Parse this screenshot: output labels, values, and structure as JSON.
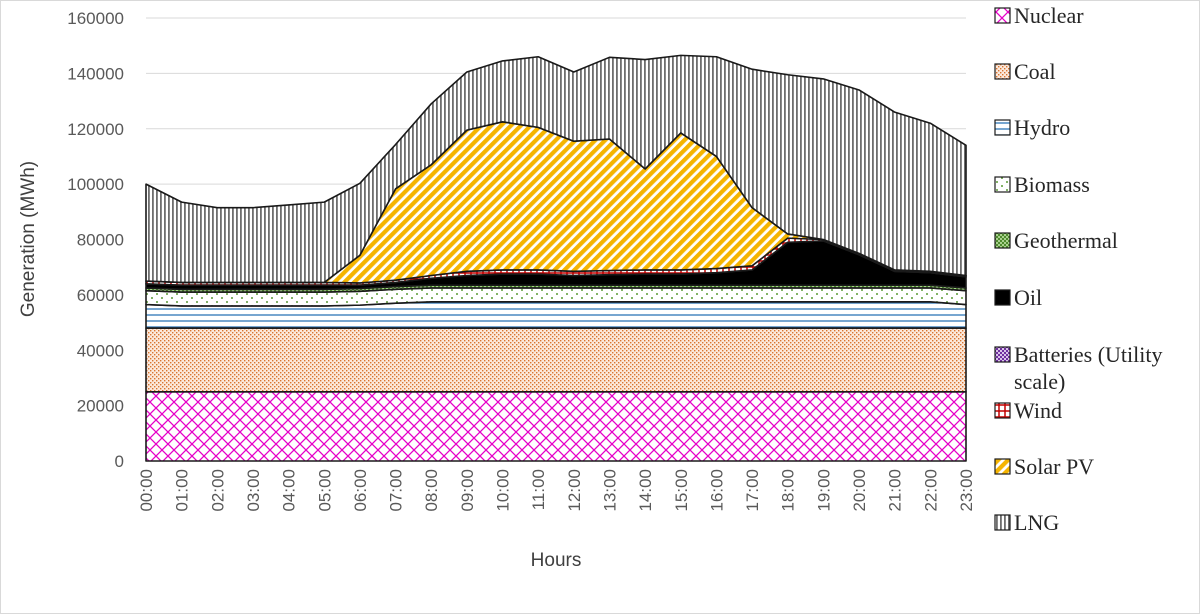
{
  "chart_data": {
    "type": "area",
    "stacked": true,
    "xlabel": "Hours",
    "ylabel": "Generation (MWh)",
    "ylim": [
      0,
      160000
    ],
    "yticks": [
      "0",
      "20000",
      "40000",
      "60000",
      "80000",
      "100000",
      "120000",
      "140000",
      "160000"
    ],
    "grid": "horizontal",
    "legend_position": "right",
    "x": [
      "00:00",
      "01:00",
      "02:00",
      "03:00",
      "04:00",
      "05:00",
      "06:00",
      "07:00",
      "08:00",
      "09:00",
      "10:00",
      "11:00",
      "12:00",
      "13:00",
      "14:00",
      "15:00",
      "16:00",
      "17:00",
      "18:00",
      "19:00",
      "20:00",
      "21:00",
      "22:00",
      "23:00"
    ],
    "series": [
      {
        "name": "Nuclear",
        "color": "#ff3fd8",
        "pattern": "diamond-grid",
        "values": [
          25000,
          25000,
          25000,
          25000,
          25000,
          25000,
          25000,
          25000,
          25000,
          25000,
          25000,
          25000,
          25000,
          25000,
          25000,
          25000,
          25000,
          25000,
          25000,
          25000,
          25000,
          25000,
          25000,
          25000
        ]
      },
      {
        "name": "Coal",
        "color": "#e07b39",
        "pattern": "fine-dots",
        "values": [
          23000,
          23000,
          23000,
          23000,
          23000,
          23000,
          23000,
          23000,
          23000,
          23000,
          23000,
          23000,
          23000,
          23000,
          23000,
          23000,
          23000,
          23000,
          23000,
          23000,
          23000,
          23000,
          23000,
          23000
        ]
      },
      {
        "name": "Hydro",
        "color": "#2e75b6",
        "pattern": "horizontal-lines",
        "values": [
          8500,
          8000,
          8000,
          8000,
          8000,
          8000,
          8300,
          9000,
          9500,
          9500,
          9500,
          9500,
          9500,
          9500,
          9500,
          9500,
          9500,
          9500,
          9500,
          9500,
          9500,
          9500,
          9500,
          8500
        ]
      },
      {
        "name": "Biomass",
        "color": "#70ad47",
        "pattern": "sparse-dots",
        "values": [
          5000,
          5000,
          5000,
          5000,
          5000,
          5000,
          5000,
          5000,
          5000,
          5000,
          5000,
          5000,
          5000,
          5000,
          5000,
          5000,
          5000,
          5000,
          5000,
          5000,
          5000,
          5000,
          5000,
          5000
        ]
      },
      {
        "name": "Geothermal",
        "color": "#70ad47",
        "pattern": "checker",
        "values": [
          1000,
          1000,
          1000,
          1000,
          1000,
          1000,
          1000,
          1000,
          1000,
          1000,
          1000,
          1000,
          1000,
          1000,
          1000,
          1000,
          1000,
          1000,
          1000,
          1000,
          1000,
          1000,
          1000,
          1000
        ]
      },
      {
        "name": "Oil",
        "color": "#000000",
        "pattern": "solid",
        "values": [
          1500,
          1500,
          1500,
          1500,
          1500,
          1500,
          1200,
          1500,
          2500,
          3500,
          4000,
          4000,
          3500,
          3800,
          4000,
          4000,
          4500,
          5500,
          15500,
          16000,
          11000,
          5000,
          4500,
          4000
        ]
      },
      {
        "name": "Batteries (Utility scale)",
        "color": "#7030a0",
        "pattern": "small-checker",
        "values": [
          0,
          0,
          0,
          0,
          0,
          0,
          0,
          0,
          0,
          0,
          0,
          0,
          0,
          0,
          0,
          0,
          0,
          0,
          0,
          0,
          0,
          0,
          0,
          0
        ]
      },
      {
        "name": "Wind",
        "color": "#c00000",
        "pattern": "red-cross",
        "values": [
          1000,
          1000,
          1000,
          1000,
          1000,
          1000,
          800,
          800,
          1000,
          1500,
          1500,
          1500,
          1500,
          1500,
          1500,
          1500,
          1500,
          1500,
          1500,
          500,
          500,
          500,
          500,
          500
        ]
      },
      {
        "name": "Solar PV",
        "color": "#ffc000",
        "pattern": "diagonal-stripes",
        "values": [
          0,
          0,
          0,
          0,
          0,
          0,
          10000,
          33000,
          40000,
          51000,
          53500,
          51500,
          47000,
          47500,
          36500,
          49500,
          40500,
          21000,
          1500,
          0,
          0,
          0,
          0,
          0
        ]
      },
      {
        "name": "LNG",
        "color": "#808080",
        "pattern": "vertical-lines",
        "values": [
          35000,
          29000,
          27000,
          27000,
          28000,
          29000,
          26000,
          16000,
          22000,
          21000,
          22000,
          25500,
          25000,
          29500,
          39500,
          28000,
          36000,
          50000,
          57500,
          58000,
          59000,
          57000,
          53500,
          47000
        ]
      }
    ]
  }
}
